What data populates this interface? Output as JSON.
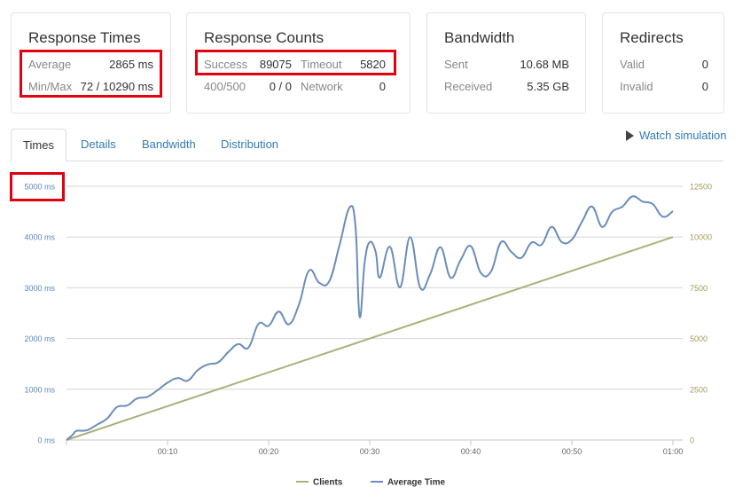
{
  "cards": {
    "response_times": {
      "title": "Response Times",
      "rows": [
        {
          "label": "Average",
          "value": "2865 ms"
        },
        {
          "label": "Min/Max",
          "value": "72 / 10290 ms"
        }
      ]
    },
    "response_counts": {
      "title": "Response Counts",
      "rows": [
        {
          "label": "Success",
          "value": "89075",
          "label2": "Timeout",
          "value2": "5820"
        },
        {
          "label": "400/500",
          "value": "0 / 0",
          "label2": "Network",
          "value2": "0"
        }
      ]
    },
    "bandwidth": {
      "title": "Bandwidth",
      "rows": [
        {
          "label": "Sent",
          "value": "10.68 MB"
        },
        {
          "label": "Received",
          "value": "5.35 GB"
        }
      ]
    },
    "redirects": {
      "title": "Redirects",
      "rows": [
        {
          "label": "Valid",
          "value": "0"
        },
        {
          "label": "Invalid",
          "value": "0"
        }
      ]
    }
  },
  "tabs": [
    {
      "label": "Times",
      "active": true
    },
    {
      "label": "Details",
      "active": false
    },
    {
      "label": "Bandwidth",
      "active": false
    },
    {
      "label": "Distribution",
      "active": false
    }
  ],
  "watch_simulation": {
    "label": "Watch simulation",
    "icon": "play-icon"
  },
  "colors": {
    "highlight": "#e3000f",
    "avg_time_line": "#6b8db8",
    "clients_line": "#a8b27a",
    "left_axis_text": "#5b86b9",
    "right_axis_text": "#a39a5a",
    "link": "#337ab7"
  },
  "chart_data": {
    "type": "line",
    "title": "",
    "x_ticks": [
      "00:10",
      "00:20",
      "00:30",
      "00:40",
      "00:50",
      "01:00"
    ],
    "x_tick_seconds": [
      10,
      20,
      30,
      40,
      50,
      60
    ],
    "xlim": [
      0,
      60
    ],
    "y_left": {
      "ticks": [
        "0 ms",
        "1000 ms",
        "2000 ms",
        "3000 ms",
        "4000 ms",
        "5000 ms"
      ],
      "ylim": [
        0,
        5000
      ],
      "unit": "ms"
    },
    "y_right": {
      "ticks": [
        "0",
        "2500",
        "5000",
        "7500",
        "10000",
        "12500"
      ],
      "ylim": [
        0,
        12500
      ]
    },
    "grid": true,
    "legend_position": "bottom-center",
    "series": [
      {
        "name": "Clients",
        "axis": "right",
        "x": [
          0,
          60
        ],
        "values": [
          0,
          10000
        ]
      },
      {
        "name": "Average Time",
        "axis": "left",
        "x": [
          0,
          0.6,
          1,
          2,
          3,
          4,
          5,
          6,
          7,
          8,
          9,
          10,
          11,
          12,
          13,
          14,
          15,
          16,
          17,
          18,
          19,
          20,
          21,
          22,
          23,
          24,
          25,
          26,
          27,
          28,
          28.6,
          29,
          29.5,
          30,
          30.6,
          31,
          32,
          33,
          34,
          35,
          36,
          37,
          38,
          39,
          40,
          41,
          42,
          43,
          44,
          45,
          46,
          47,
          48,
          49,
          50,
          51,
          52,
          53,
          54,
          55,
          56,
          57,
          58,
          59,
          60
        ],
        "values": [
          0,
          100,
          180,
          190,
          300,
          420,
          650,
          680,
          820,
          850,
          980,
          1130,
          1220,
          1170,
          1380,
          1490,
          1530,
          1730,
          1890,
          1820,
          2290,
          2250,
          2530,
          2280,
          2670,
          3340,
          3100,
          3130,
          3830,
          4580,
          4200,
          2430,
          3500,
          3900,
          3700,
          3200,
          3810,
          3010,
          4000,
          3000,
          3280,
          3800,
          3200,
          3550,
          3820,
          3290,
          3320,
          3900,
          3710,
          3590,
          3890,
          3850,
          4200,
          3900,
          3950,
          4300,
          4600,
          4200,
          4500,
          4600,
          4800,
          4700,
          4650,
          4400,
          4510
        ]
      }
    ]
  }
}
